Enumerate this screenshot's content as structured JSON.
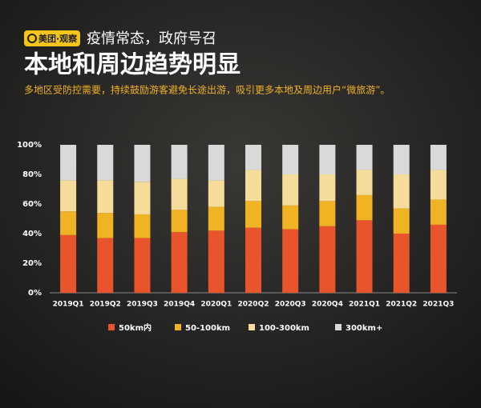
{
  "header": {
    "logo": "美团·观察",
    "kicker": "疫情常态，政府号召",
    "title": "本地和周边趋势明显",
    "subtitle": "多地区受防控需要，持续鼓励游客避免长途出游，吸引更多本地及周边用户“微旅游”。"
  },
  "chart_data": {
    "type": "stacked_bar",
    "categories": [
      "2019Q1",
      "2019Q2",
      "2019Q3",
      "2019Q4",
      "2020Q1",
      "2020Q2",
      "2020Q3",
      "2020Q4",
      "2021Q1",
      "2021Q2",
      "2021Q3"
    ],
    "series": [
      {
        "name": "50km内",
        "color": "#e8552c",
        "values": [
          39,
          37,
          37,
          41,
          42,
          44,
          43,
          45,
          49,
          40,
          46
        ]
      },
      {
        "name": "50-100km",
        "color": "#f0b323",
        "values": [
          16,
          17,
          16,
          15,
          16,
          18,
          16,
          17,
          17,
          17,
          17
        ]
      },
      {
        "name": "100-300km",
        "color": "#f5dc9a",
        "values": [
          21,
          22,
          22,
          21,
          18,
          21,
          21,
          18,
          17,
          23,
          20
        ]
      },
      {
        "name": "300km+",
        "color": "#d9d9d9",
        "values": [
          24,
          24,
          25,
          23,
          24,
          17,
          20,
          20,
          17,
          20,
          17
        ]
      }
    ],
    "ylim": [
      0,
      100
    ],
    "yticks": [
      {
        "value": 0,
        "label": "0%"
      },
      {
        "value": 20,
        "label": "20%"
      },
      {
        "value": 40,
        "label": "40%"
      },
      {
        "value": 60,
        "label": "60%"
      },
      {
        "value": 80,
        "label": "80%"
      },
      {
        "value": 100,
        "label": "100%"
      }
    ],
    "legend": "bottom"
  }
}
